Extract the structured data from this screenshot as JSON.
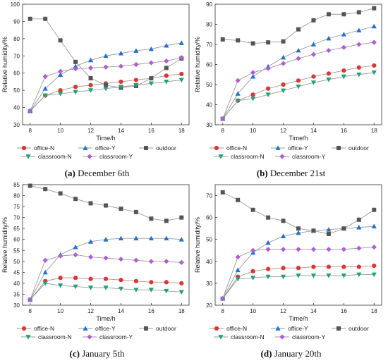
{
  "colors": {
    "office_n": "#e8302c",
    "office_y": "#1f6fd6",
    "outdoor": "#555555",
    "classroom_n": "#1aa37a",
    "classroom_y": "#b35ad8",
    "axis": "#333333",
    "line": "#9a9a9a"
  },
  "legend_labels": [
    "office-N",
    "office-Y",
    "outdoor",
    "classroom-N",
    "classroom-Y"
  ],
  "chart_data": [
    {
      "type": "line",
      "caption_letter": "(a)",
      "caption_text": " December 6th",
      "xlabel": "Time/h",
      "ylabel": "Relative humidity/%",
      "x": [
        8,
        9,
        10,
        11,
        12,
        13,
        14,
        15,
        16,
        17,
        18
      ],
      "xlim": [
        7.5,
        18.5
      ],
      "ylim": [
        30,
        100
      ],
      "yticks": [
        30,
        40,
        50,
        60,
        70,
        80,
        90,
        100
      ],
      "xticks": [
        8,
        10,
        12,
        14,
        16,
        18
      ],
      "legend_position": "bottom",
      "series": [
        {
          "name": "office-N",
          "values": [
            38,
            47,
            50,
            52,
            53,
            54,
            55,
            56,
            57,
            58.5,
            59.5
          ]
        },
        {
          "name": "office-Y",
          "values": [
            38,
            51,
            59,
            64,
            67.5,
            70,
            71.5,
            73,
            74,
            76,
            77.5
          ]
        },
        {
          "name": "outdoor",
          "values": [
            91.5,
            91.5,
            79,
            66.5,
            57,
            53,
            51.5,
            52.5,
            57,
            63,
            68.5
          ]
        },
        {
          "name": "classroom-N",
          "values": [
            38,
            47,
            48,
            49,
            50,
            51,
            52,
            53,
            54,
            55,
            56
          ]
        },
        {
          "name": "classroom-Y",
          "values": [
            38,
            58,
            61,
            62.5,
            63,
            63.5,
            64,
            65,
            66,
            67,
            69
          ]
        }
      ]
    },
    {
      "type": "line",
      "caption_letter": "(b)",
      "caption_text": " December 21st",
      "xlabel": "Time/h",
      "ylabel": "Relative humidity/%",
      "x": [
        8,
        9,
        10,
        11,
        12,
        13,
        14,
        15,
        16,
        17,
        18
      ],
      "xlim": [
        7.5,
        18.5
      ],
      "ylim": [
        30,
        90
      ],
      "yticks": [
        30,
        40,
        50,
        60,
        70,
        80,
        90
      ],
      "xticks": [
        8,
        10,
        12,
        14,
        16,
        18
      ],
      "legend_position": "bottom",
      "series": [
        {
          "name": "office-N",
          "values": [
            33,
            42,
            45,
            48,
            50,
            52,
            54,
            55.5,
            57,
            58.5,
            59.5
          ]
        },
        {
          "name": "office-Y",
          "values": [
            33,
            45.5,
            54,
            59,
            63.5,
            67,
            70,
            73,
            75,
            77,
            79
          ]
        },
        {
          "name": "outdoor",
          "values": [
            72.5,
            72,
            70.5,
            71,
            71.5,
            77.5,
            82,
            85,
            85,
            86,
            88
          ]
        },
        {
          "name": "classroom-N",
          "values": [
            33,
            42,
            43,
            45,
            47,
            49,
            51,
            52.5,
            54,
            55,
            56
          ]
        },
        {
          "name": "classroom-Y",
          "values": [
            33,
            52,
            56,
            58,
            60.5,
            63,
            65,
            67,
            68.5,
            70,
            71
          ]
        }
      ]
    },
    {
      "type": "line",
      "caption_letter": "(c)",
      "caption_text": " January 5th",
      "xlabel": "Time/h",
      "ylabel": "Relative humidity/%",
      "x": [
        8,
        9,
        10,
        11,
        12,
        13,
        14,
        15,
        16,
        17,
        18
      ],
      "xlim": [
        7.5,
        18.5
      ],
      "ylim": [
        30,
        85
      ],
      "yticks": [
        30,
        35,
        40,
        45,
        50,
        55,
        60,
        65,
        70,
        75,
        80,
        85
      ],
      "xticks": [
        8,
        10,
        12,
        14,
        16,
        18
      ],
      "legend_position": "bottom",
      "series": [
        {
          "name": "office-N",
          "values": [
            32.5,
            41,
            42.5,
            42.5,
            42,
            42,
            41.5,
            41,
            40.5,
            40.5,
            40
          ]
        },
        {
          "name": "office-Y",
          "values": [
            32.5,
            45,
            53,
            56.5,
            59,
            60,
            60.5,
            60.5,
            60.5,
            60.5,
            60
          ]
        },
        {
          "name": "outdoor",
          "values": [
            84.5,
            83,
            81,
            78.5,
            76.5,
            75.5,
            74,
            72.5,
            69.5,
            68.5,
            70
          ]
        },
        {
          "name": "classroom-N",
          "values": [
            32.5,
            40,
            39,
            38.5,
            38,
            38,
            37.5,
            37,
            37,
            36.5,
            36
          ]
        },
        {
          "name": "classroom-Y",
          "values": [
            32.5,
            50.5,
            52.5,
            53,
            52,
            51.5,
            51,
            50.5,
            50,
            50,
            49.5
          ]
        }
      ]
    },
    {
      "type": "line",
      "caption_letter": "(d)",
      "caption_text": " January 20th",
      "xlabel": "Time/h",
      "ylabel": "Relative humidity/%",
      "x": [
        8,
        9,
        10,
        11,
        12,
        13,
        14,
        15,
        16,
        17,
        18
      ],
      "xlim": [
        7.5,
        18.5
      ],
      "ylim": [
        20,
        75
      ],
      "yticks": [
        20,
        30,
        40,
        50,
        60,
        70
      ],
      "xticks": [
        8,
        10,
        12,
        14,
        16,
        18
      ],
      "legend_position": "bottom",
      "series": [
        {
          "name": "office-N",
          "values": [
            23,
            33,
            35.5,
            36.5,
            37,
            37,
            37.5,
            37.5,
            37.5,
            37.5,
            38
          ]
        },
        {
          "name": "office-Y",
          "values": [
            23,
            36,
            44,
            48.5,
            51.5,
            53,
            54,
            54.5,
            55,
            55.5,
            56
          ]
        },
        {
          "name": "outdoor",
          "values": [
            71.5,
            68,
            63.5,
            60,
            58.5,
            55,
            54,
            52.5,
            55,
            59,
            63.5
          ]
        },
        {
          "name": "classroom-N",
          "values": [
            23,
            32,
            32.5,
            33,
            33,
            33.5,
            33.5,
            33.5,
            33.5,
            34,
            34
          ]
        },
        {
          "name": "classroom-Y",
          "values": [
            23,
            42,
            45,
            45.5,
            45.5,
            45.5,
            45.5,
            45.5,
            45.5,
            46,
            46.5
          ]
        }
      ]
    }
  ]
}
